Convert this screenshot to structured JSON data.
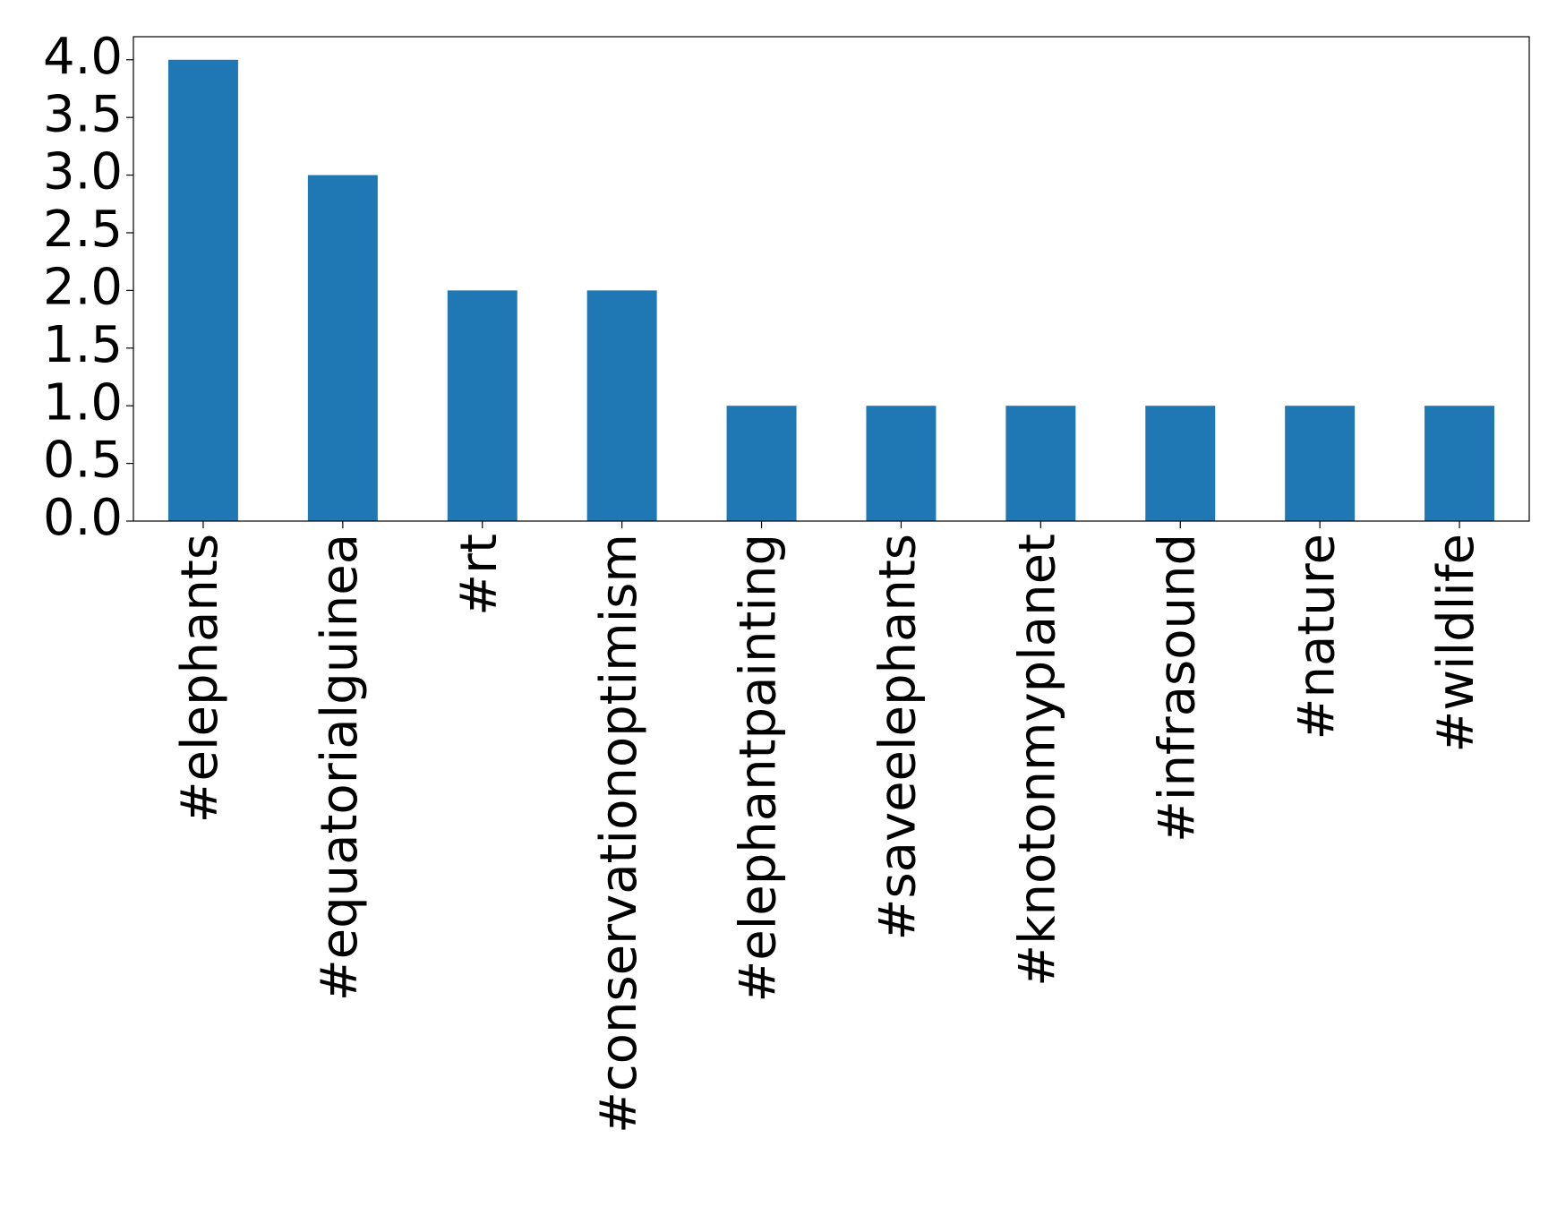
{
  "chart_data": {
    "type": "bar",
    "categories": [
      "#elephants",
      "#equatorialguinea",
      "#rt",
      "#conservationoptimism",
      "#elephantpainting",
      "#saveelephants",
      "#knotonmyplanet",
      "#infrasound",
      "#nature",
      "#wildlife"
    ],
    "values": [
      4,
      3,
      2,
      2,
      1,
      1,
      1,
      1,
      1,
      1
    ],
    "color": "#1f77b4",
    "ylim": [
      0,
      4.2
    ],
    "yticks": [
      {
        "value": 0,
        "label": "0.0"
      },
      {
        "value": 0.5,
        "label": "0.5"
      },
      {
        "value": 1,
        "label": "1.0"
      },
      {
        "value": 1.5,
        "label": "1.5"
      },
      {
        "value": 2,
        "label": "2.0"
      },
      {
        "value": 2.5,
        "label": "2.5"
      },
      {
        "value": 3,
        "label": "3.0"
      },
      {
        "value": 3.5,
        "label": "3.5"
      },
      {
        "value": 4,
        "label": "4.0"
      }
    ],
    "grid": false
  }
}
